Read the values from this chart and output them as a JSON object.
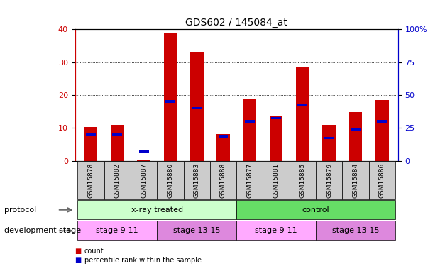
{
  "title": "GDS602 / 145084_at",
  "samples": [
    "GSM15878",
    "GSM15882",
    "GSM15887",
    "GSM15880",
    "GSM15883",
    "GSM15888",
    "GSM15877",
    "GSM15881",
    "GSM15885",
    "GSM15879",
    "GSM15884",
    "GSM15886"
  ],
  "count_values": [
    10.3,
    11.0,
    0.5,
    39.0,
    33.0,
    8.2,
    19.0,
    13.5,
    28.5,
    11.0,
    14.8,
    18.5
  ],
  "percentile_values": [
    20.0,
    20.0,
    7.5,
    45.0,
    40.0,
    18.5,
    30.0,
    32.5,
    42.5,
    17.5,
    23.5,
    30.0
  ],
  "count_color": "#cc0000",
  "percentile_color": "#0000cc",
  "bar_width": 0.5,
  "ylim_left": [
    0,
    40
  ],
  "ylim_right": [
    0,
    100
  ],
  "yticks_left": [
    0,
    10,
    20,
    30,
    40
  ],
  "yticks_right": [
    0,
    25,
    50,
    75,
    100
  ],
  "ytick_labels_right": [
    "0",
    "25",
    "50",
    "75",
    "100%"
  ],
  "protocol_groups": [
    {
      "label": "x-ray treated",
      "start": 0,
      "end": 6,
      "color": "#ccffcc"
    },
    {
      "label": "control",
      "start": 6,
      "end": 12,
      "color": "#66dd66"
    }
  ],
  "stage_groups": [
    {
      "label": "stage 9-11",
      "start": 0,
      "end": 3,
      "color": "#ffaaff"
    },
    {
      "label": "stage 13-15",
      "start": 3,
      "end": 6,
      "color": "#dd88dd"
    },
    {
      "label": "stage 9-11",
      "start": 6,
      "end": 9,
      "color": "#ffaaff"
    },
    {
      "label": "stage 13-15",
      "start": 9,
      "end": 12,
      "color": "#dd88dd"
    }
  ],
  "protocol_label": "protocol",
  "stage_label": "development stage",
  "legend_count": "count",
  "legend_percentile": "percentile rank within the sample",
  "fig_width": 6.03,
  "fig_height": 3.75
}
